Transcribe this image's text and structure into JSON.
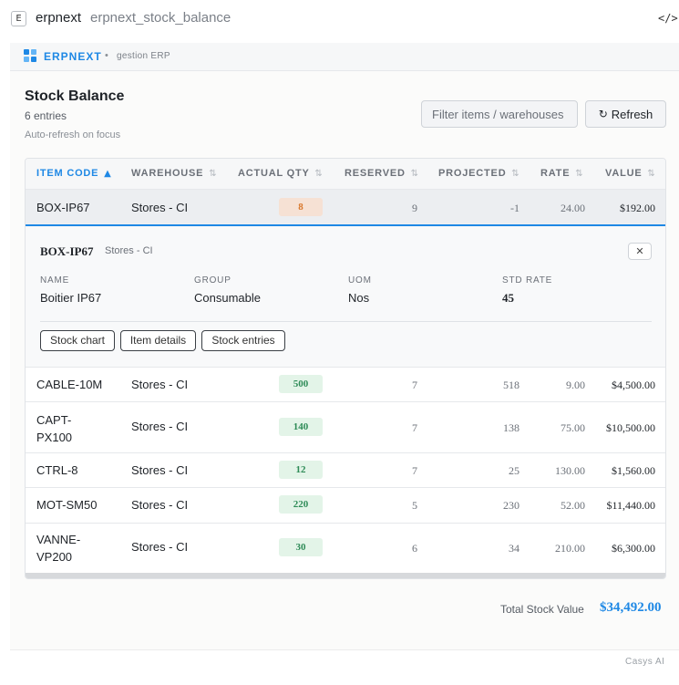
{
  "window": {
    "app_icon": "E",
    "app_name": "erpnext",
    "tool_name": "erpnext_stock_balance",
    "code_icon": "</>"
  },
  "brand": {
    "name": "ERPNEXT",
    "separator": "•",
    "subtitle": "gestion ERP",
    "accent_color": "#1e88e5"
  },
  "header": {
    "title": "Stock Balance",
    "entries": "6 entries",
    "auto_refresh": "Auto-refresh on focus",
    "filter_placeholder": "Filter items / warehouses",
    "refresh_label": "Refresh",
    "refresh_icon": "↻"
  },
  "table": {
    "columns": [
      {
        "label": "ITEM CODE",
        "sort": "▲",
        "active": true
      },
      {
        "label": "WAREHOUSE",
        "sort": "⇅",
        "active": false
      },
      {
        "label": "ACTUAL QTY",
        "sort": "⇅",
        "active": false
      },
      {
        "label": "RESERVED",
        "sort": "⇅",
        "active": false
      },
      {
        "label": "PROJECTED",
        "sort": "⇅",
        "active": false
      },
      {
        "label": "RATE",
        "sort": "⇅",
        "active": false
      },
      {
        "label": "VALUE",
        "sort": "⇅",
        "active": false
      }
    ],
    "rows": [
      {
        "item_code": "BOX-IP67",
        "warehouse": "Stores - CI",
        "actual_qty": "8",
        "reserved": "9",
        "projected": "-1",
        "rate": "24.00",
        "value": "$192.00",
        "status": "low"
      },
      {
        "item_code": "CABLE-10M",
        "warehouse": "Stores - CI",
        "actual_qty": "500",
        "reserved": "7",
        "projected": "518",
        "rate": "9.00",
        "value": "$4,500.00",
        "status": "ok"
      },
      {
        "item_code": "CAPT-PX100",
        "item_code_l1": "CAPT-",
        "item_code_l2": "PX100",
        "warehouse": "Stores - CI",
        "actual_qty": "140",
        "reserved": "7",
        "projected": "138",
        "rate": "75.00",
        "value": "$10,500.00",
        "status": "ok"
      },
      {
        "item_code": "CTRL-8",
        "warehouse": "Stores - CI",
        "actual_qty": "12",
        "reserved": "7",
        "projected": "25",
        "rate": "130.00",
        "value": "$1,560.00",
        "status": "ok"
      },
      {
        "item_code": "MOT-SM50",
        "warehouse": "Stores - CI",
        "actual_qty": "220",
        "reserved": "5",
        "projected": "230",
        "rate": "52.00",
        "value": "$11,440.00",
        "status": "ok"
      },
      {
        "item_code": "VANNE-VP200",
        "item_code_l1": "VANNE-",
        "item_code_l2": "VP200",
        "warehouse": "Stores - CI",
        "actual_qty": "30",
        "reserved": "6",
        "projected": "34",
        "rate": "210.00",
        "value": "$6,300.00",
        "status": "ok"
      }
    ]
  },
  "detail": {
    "item_code": "BOX-IP67",
    "warehouse": "Stores - CI",
    "close_icon": "✕",
    "fields": [
      {
        "label": "NAME",
        "value": "Boitier IP67"
      },
      {
        "label": "GROUP",
        "value": "Consumable"
      },
      {
        "label": "UOM",
        "value": "Nos"
      },
      {
        "label": "STD RATE",
        "value": "45"
      }
    ],
    "buttons": [
      "Stock chart",
      "Item details",
      "Stock entries"
    ]
  },
  "summary": {
    "total_label": "Total Stock Value",
    "total_value": "$34,492.00"
  },
  "footer": {
    "text": "Casys AI"
  }
}
